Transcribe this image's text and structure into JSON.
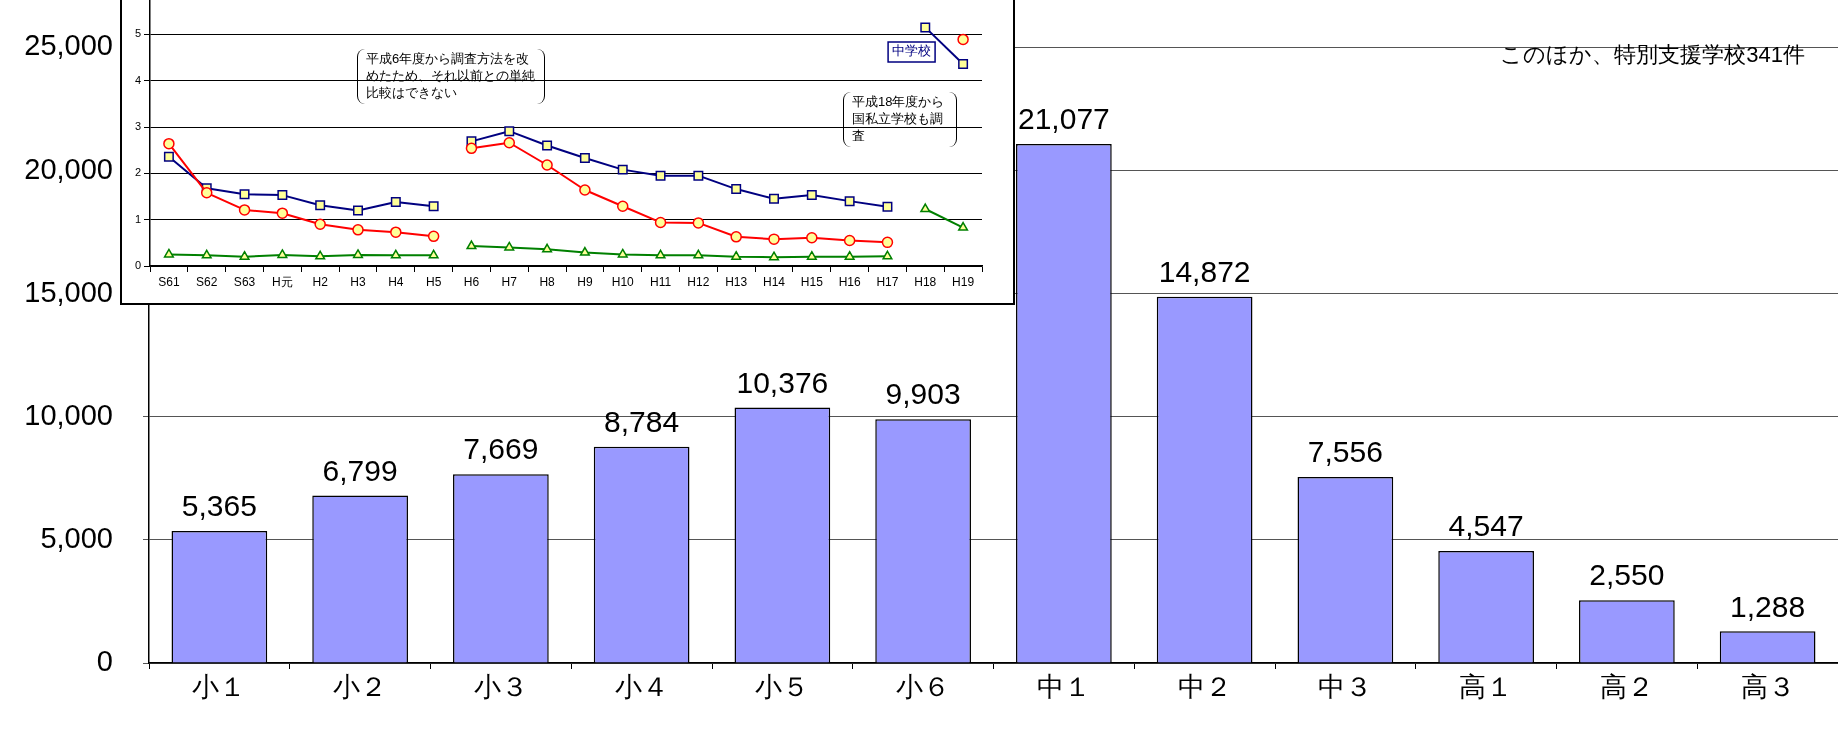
{
  "chart_data": [
    {
      "type": "bar",
      "categories": [
        "小１",
        "小２",
        "小３",
        "小４",
        "小５",
        "小６",
        "中１",
        "中２",
        "中３",
        "高１",
        "高２",
        "高３"
      ],
      "values": [
        5365,
        6799,
        7669,
        8784,
        10376,
        9903,
        21077,
        14872,
        7556,
        4547,
        2550,
        1288
      ],
      "value_labels": [
        "5,365",
        "6,799",
        "7,669",
        "8,784",
        "10,376",
        "9,903",
        "21,077",
        "14,872",
        "7,556",
        "4,547",
        "2,550",
        "1,288"
      ],
      "color": "#9999ff",
      "ylim": [
        0,
        25000
      ],
      "yticks": [
        {
          "value": 0,
          "label": "0"
        },
        {
          "value": 5000,
          "label": "5,000"
        },
        {
          "value": 10000,
          "label": "10,000"
        },
        {
          "value": 15000,
          "label": "15,000"
        },
        {
          "value": 20000,
          "label": "20,000"
        },
        {
          "value": 25000,
          "label": "25,000"
        }
      ],
      "grid": "y",
      "legend": false,
      "annotations": [
        "このほか、特別支援学校341件"
      ]
    },
    {
      "type": "line",
      "categories": [
        "S61",
        "S62",
        "S63",
        "H元",
        "H2",
        "H3",
        "H4",
        "H5",
        "H6",
        "H7",
        "H8",
        "H9",
        "H10",
        "H11",
        "H12",
        "H13",
        "H14",
        "H15",
        "H16",
        "H17",
        "H18",
        "H19"
      ],
      "ylim": [
        0,
        6
      ],
      "yticks": [
        0,
        1,
        2,
        3,
        4,
        5
      ],
      "grid": "y",
      "legend": false,
      "series": [
        {
          "color": "#ff0000",
          "marker": "circle",
          "values": [
            2.64,
            1.58,
            1.21,
            1.14,
            0.9,
            0.78,
            0.73,
            0.64,
            null,
            null,
            null,
            null,
            null,
            null,
            null,
            null,
            null,
            null,
            null,
            null,
            null,
            null
          ]
        },
        {
          "color": "#ff0000",
          "marker": "circle",
          "values": [
            null,
            null,
            null,
            null,
            null,
            null,
            null,
            null,
            2.54,
            2.66,
            2.18,
            1.64,
            1.29,
            0.94,
            0.93,
            0.63,
            0.58,
            0.61,
            0.55,
            0.51,
            null,
            null
          ]
        },
        {
          "color": "#ff0000",
          "marker": "circle",
          "values": [
            null,
            null,
            null,
            null,
            null,
            null,
            null,
            null,
            null,
            null,
            null,
            null,
            null,
            null,
            null,
            null,
            null,
            null,
            null,
            null,
            null,
            4.89
          ]
        },
        {
          "color": "#000080",
          "marker": "square",
          "values": [
            2.36,
            1.68,
            1.55,
            1.53,
            1.31,
            1.2,
            1.38,
            1.29,
            null,
            null,
            null,
            null,
            null,
            null,
            null,
            null,
            null,
            null,
            null,
            null,
            null,
            null
          ]
        },
        {
          "color": "#000080",
          "marker": "square",
          "values": [
            null,
            null,
            null,
            null,
            null,
            null,
            null,
            null,
            2.69,
            2.91,
            2.6,
            2.33,
            2.08,
            1.95,
            1.95,
            1.66,
            1.45,
            1.53,
            1.4,
            1.28,
            null,
            null
          ]
        },
        {
          "name": "中学校",
          "color": "#000080",
          "marker": "square",
          "values": [
            null,
            null,
            null,
            null,
            null,
            null,
            null,
            null,
            null,
            null,
            null,
            null,
            null,
            null,
            null,
            null,
            null,
            null,
            null,
            null,
            5.15,
            4.36
          ]
        },
        {
          "color": "#008000",
          "marker": "triangle",
          "values": [
            0.25,
            0.23,
            0.2,
            0.24,
            0.21,
            0.24,
            0.23,
            0.23,
            null,
            null,
            null,
            null,
            null,
            null,
            null,
            null,
            null,
            null,
            null,
            null,
            null,
            null
          ]
        },
        {
          "color": "#008000",
          "marker": "triangle",
          "values": [
            null,
            null,
            null,
            null,
            null,
            null,
            null,
            null,
            0.43,
            0.4,
            0.36,
            0.29,
            0.25,
            0.23,
            0.23,
            0.2,
            0.19,
            0.2,
            0.2,
            0.21,
            null,
            null
          ]
        },
        {
          "color": "#008000",
          "marker": "triangle",
          "values": [
            null,
            null,
            null,
            null,
            null,
            null,
            null,
            null,
            null,
            null,
            null,
            null,
            null,
            null,
            null,
            null,
            null,
            null,
            null,
            null,
            1.23,
            0.83
          ]
        }
      ],
      "annotations": [
        "平成6年度から調査方法を改めたため、それ以前との単純比較はできない",
        "平成18年度から国私立学校も調査"
      ]
    }
  ]
}
